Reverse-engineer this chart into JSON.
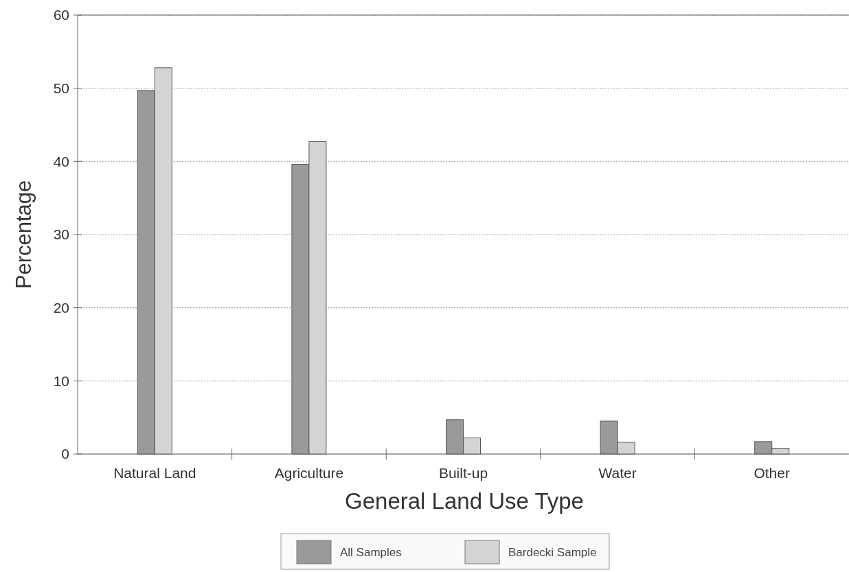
{
  "chart_data": {
    "type": "bar",
    "xlabel": "General Land Use Type",
    "ylabel": "Percentage",
    "categories": [
      "Natural Land",
      "Agriculture",
      "Built-up",
      "Water",
      "Other"
    ],
    "series": [
      {
        "name": "All Samples",
        "color": "#9a9a9a",
        "values": [
          49.7,
          39.6,
          4.7,
          4.5,
          1.7
        ]
      },
      {
        "name": "Bardecki Sample",
        "color": "#d4d4d4",
        "values": [
          52.8,
          42.7,
          2.2,
          1.6,
          0.8
        ]
      }
    ],
    "ylim": [
      0,
      60
    ],
    "yticks": [
      0,
      10,
      20,
      30,
      40,
      50,
      60
    ],
    "grid": "y",
    "legend": "bottom"
  }
}
